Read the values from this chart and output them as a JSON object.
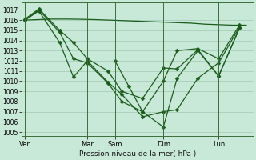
{
  "title": "Pression niveau de la mer( hPa )",
  "bg_color": "#c8e8d8",
  "grid_color": "#a0c8b0",
  "line_color": "#1a5c1a",
  "ylim": [
    1004.6,
    1017.7
  ],
  "yticks": [
    1005,
    1006,
    1007,
    1008,
    1009,
    1010,
    1011,
    1012,
    1013,
    1014,
    1015,
    1016,
    1017
  ],
  "day_labels": [
    "Ven",
    "Mar",
    "Sam",
    "Dim",
    "Lun"
  ],
  "day_x": [
    0,
    9,
    13,
    20,
    28
  ],
  "xlim": [
    -0.5,
    33
  ],
  "flat_line": {
    "x": [
      0,
      2,
      4,
      6,
      8,
      10,
      12,
      14,
      16,
      18,
      20,
      22,
      24,
      26,
      28,
      30,
      32
    ],
    "y": [
      1016.0,
      1016.05,
      1016.1,
      1016.1,
      1016.08,
      1016.05,
      1016.0,
      1015.95,
      1015.9,
      1015.85,
      1015.8,
      1015.75,
      1015.7,
      1015.6,
      1015.55,
      1015.5,
      1015.5
    ]
  },
  "line_a": {
    "x": [
      0,
      2,
      5,
      7,
      9,
      12,
      14,
      17,
      20,
      22,
      25,
      28,
      31
    ],
    "y": [
      1016.1,
      1017.1,
      1015.0,
      1013.8,
      1012.2,
      1011.0,
      1009.0,
      1008.3,
      1011.3,
      1011.2,
      1013.1,
      1010.5,
      1015.2
    ]
  },
  "line_b": {
    "x": [
      0,
      2,
      5,
      7,
      9,
      12,
      14,
      17,
      20,
      22,
      25,
      28,
      31
    ],
    "y": [
      1016.0,
      1017.0,
      1014.8,
      1012.2,
      1011.8,
      1009.8,
      1008.0,
      1007.0,
      1010.0,
      1013.0,
      1013.2,
      1012.2,
      1015.5
    ]
  },
  "line_c": {
    "x": [
      0,
      2,
      5,
      7,
      9,
      12,
      14,
      17,
      20,
      22,
      25,
      28,
      31
    ],
    "y": [
      1016.0,
      1016.9,
      1013.8,
      1010.4,
      1012.0,
      1009.9,
      1008.7,
      1006.5,
      1007.0,
      1007.2,
      1010.3,
      1011.8,
      1015.3
    ]
  },
  "line_d": {
    "x": [
      13,
      15,
      17,
      20,
      22,
      25,
      28,
      31
    ],
    "y": [
      1012.0,
      1009.5,
      1007.0,
      1005.5,
      1010.3,
      1013.0,
      1010.5,
      1015.2
    ]
  }
}
